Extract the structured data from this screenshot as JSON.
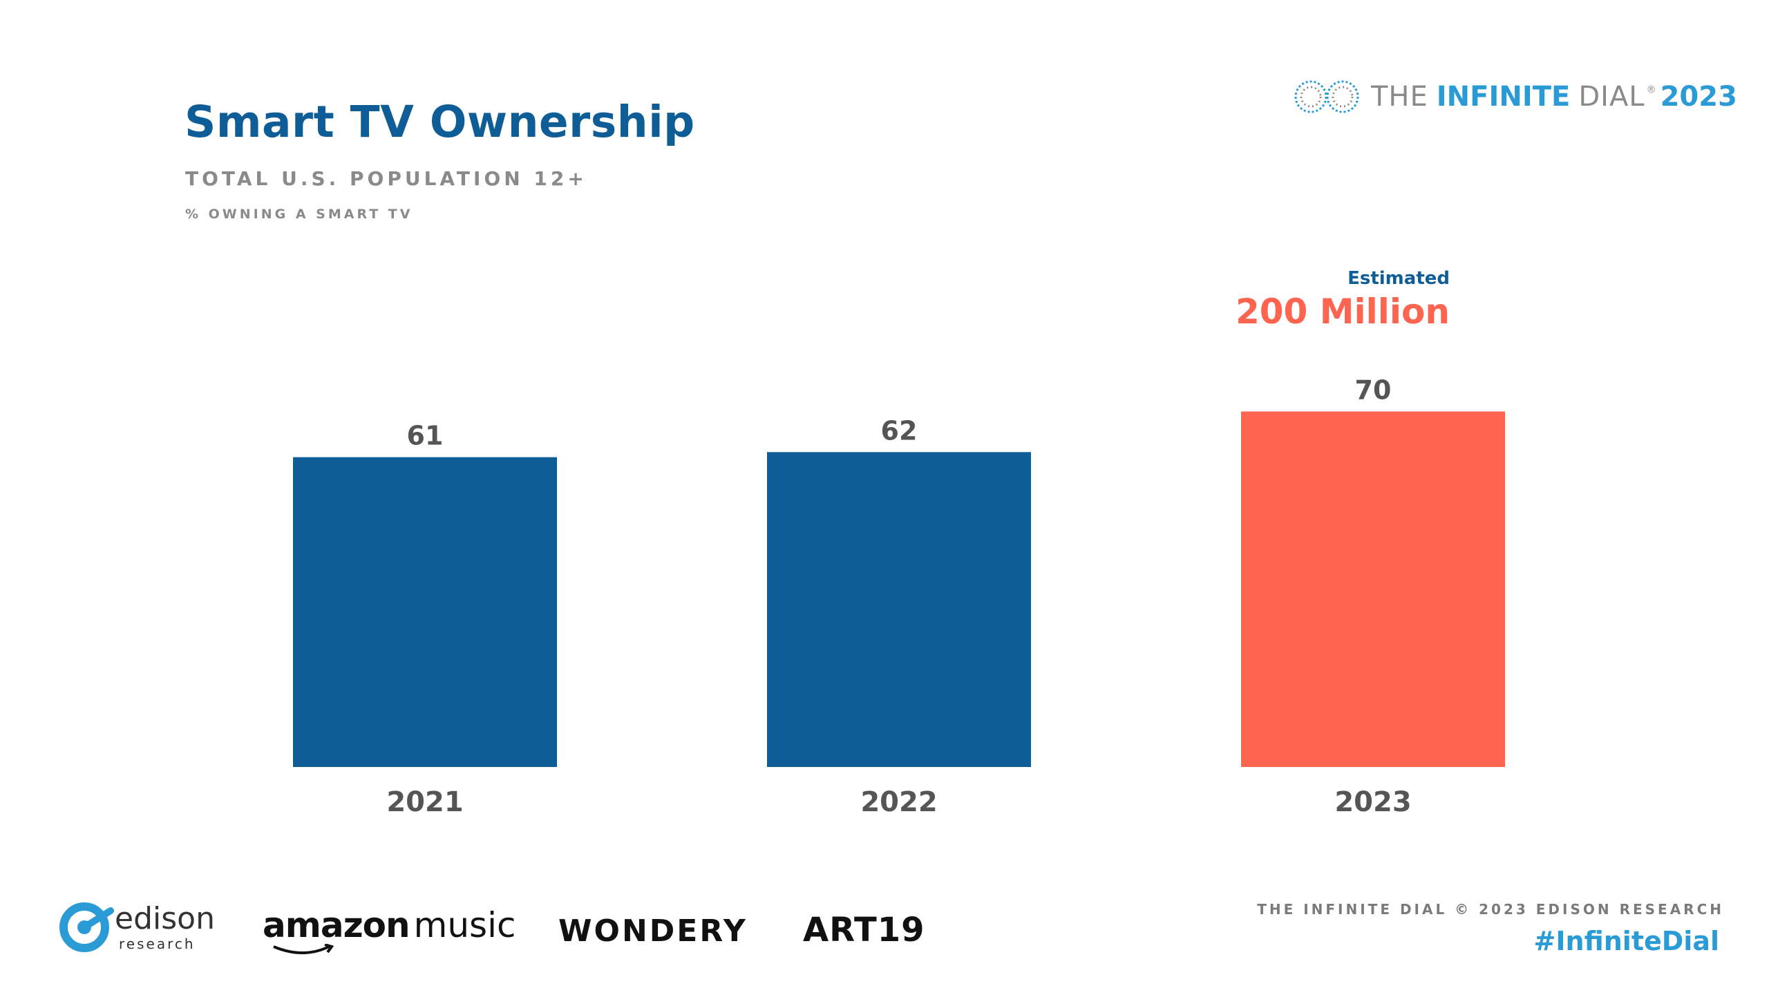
{
  "header": {
    "title": "Smart TV Ownership",
    "subtitle": "TOTAL U.S. POPULATION 12+",
    "metric": "% OWNING A SMART TV"
  },
  "brand": {
    "the": "THE",
    "infinite": "INFINITE",
    "dial": "DIAL",
    "registered": "®",
    "year": "2023"
  },
  "callout": {
    "small": "Estimated",
    "big": "200 Million"
  },
  "chart_data": {
    "type": "bar",
    "title": "Smart TV Ownership",
    "subtitle": "TOTAL U.S. POPULATION 12+",
    "ylabel": "% OWNING A SMART TV",
    "xlabel": "",
    "categories": [
      "2021",
      "2022",
      "2023"
    ],
    "values": [
      61,
      62,
      70
    ],
    "bar_colors": [
      "#0e5d96",
      "#0e5d96",
      "#ff6450"
    ],
    "ylim": [
      0,
      100
    ],
    "grid": false,
    "annotations": [
      {
        "category": "2023",
        "text": "Estimated 200 Million"
      }
    ]
  },
  "footer": {
    "source": "THE INFINITE DIAL    © 2023 EDISON RESEARCH",
    "hashtag": "#InfiniteDial"
  },
  "logos": {
    "edison": "edison",
    "edison_sub": "research",
    "amazon_a": "amazon",
    "amazon_b": "music",
    "wondery": "WONDERY",
    "art19": "ART19"
  },
  "colors": {
    "accent_blue": "#0e5d96",
    "accent_coral": "#ff6450",
    "brand_cyan": "#2b9bd6"
  }
}
